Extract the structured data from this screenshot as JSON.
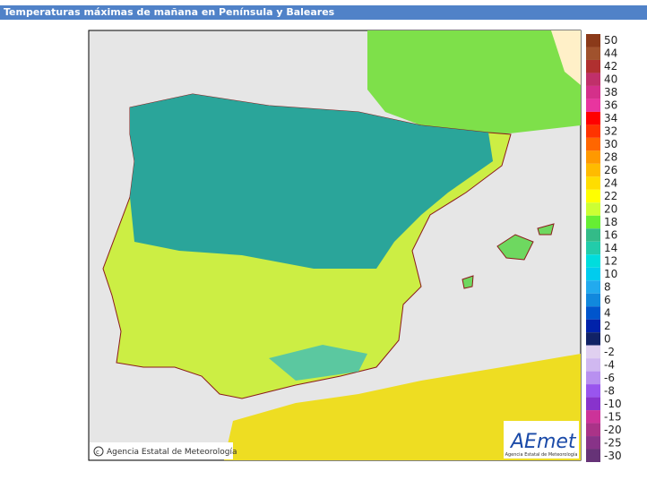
{
  "title": "Temperaturas máximas de mañana en Península y Baleares",
  "copyright": "Agencia Estatal de Meteorología",
  "logo": {
    "name": "AEmet",
    "subtitle": "Agencia Estatal de Meteorología"
  },
  "legend": [
    {
      "label": "50",
      "color": "#8b3a1a"
    },
    {
      "label": "44",
      "color": "#a0522d"
    },
    {
      "label": "42",
      "color": "#b03030"
    },
    {
      "label": "40",
      "color": "#c0306a"
    },
    {
      "label": "38",
      "color": "#d4308a"
    },
    {
      "label": "36",
      "color": "#e8359f"
    },
    {
      "label": "34",
      "color": "#ff0000"
    },
    {
      "label": "32",
      "color": "#ff3300"
    },
    {
      "label": "30",
      "color": "#ff6600"
    },
    {
      "label": "28",
      "color": "#ff9900"
    },
    {
      "label": "26",
      "color": "#ffbb00"
    },
    {
      "label": "24",
      "color": "#ffdd00"
    },
    {
      "label": "22",
      "color": "#ffff00"
    },
    {
      "label": "20",
      "color": "#ccff33"
    },
    {
      "label": "18",
      "color": "#66ee33"
    },
    {
      "label": "16",
      "color": "#33bb88"
    },
    {
      "label": "14",
      "color": "#22ccaa"
    },
    {
      "label": "12",
      "color": "#00dddd"
    },
    {
      "label": "10",
      "color": "#00ccee"
    },
    {
      "label": "8",
      "color": "#22aaee"
    },
    {
      "label": "6",
      "color": "#1188dd"
    },
    {
      "label": "4",
      "color": "#0055cc"
    },
    {
      "label": "2",
      "color": "#0022aa"
    },
    {
      "label": "0",
      "color": "#112266"
    },
    {
      "label": "-2",
      "color": "#e0d0f0"
    },
    {
      "label": "-4",
      "color": "#d0b8f0"
    },
    {
      "label": "-6",
      "color": "#b890f0"
    },
    {
      "label": "-8",
      "color": "#9955ee"
    },
    {
      "label": "-10",
      "color": "#8833cc"
    },
    {
      "label": "-15",
      "color": "#cc3399"
    },
    {
      "label": "-20",
      "color": "#aa3388"
    },
    {
      "label": "-25",
      "color": "#883388"
    },
    {
      "label": "-30",
      "color": "#663377"
    }
  ]
}
